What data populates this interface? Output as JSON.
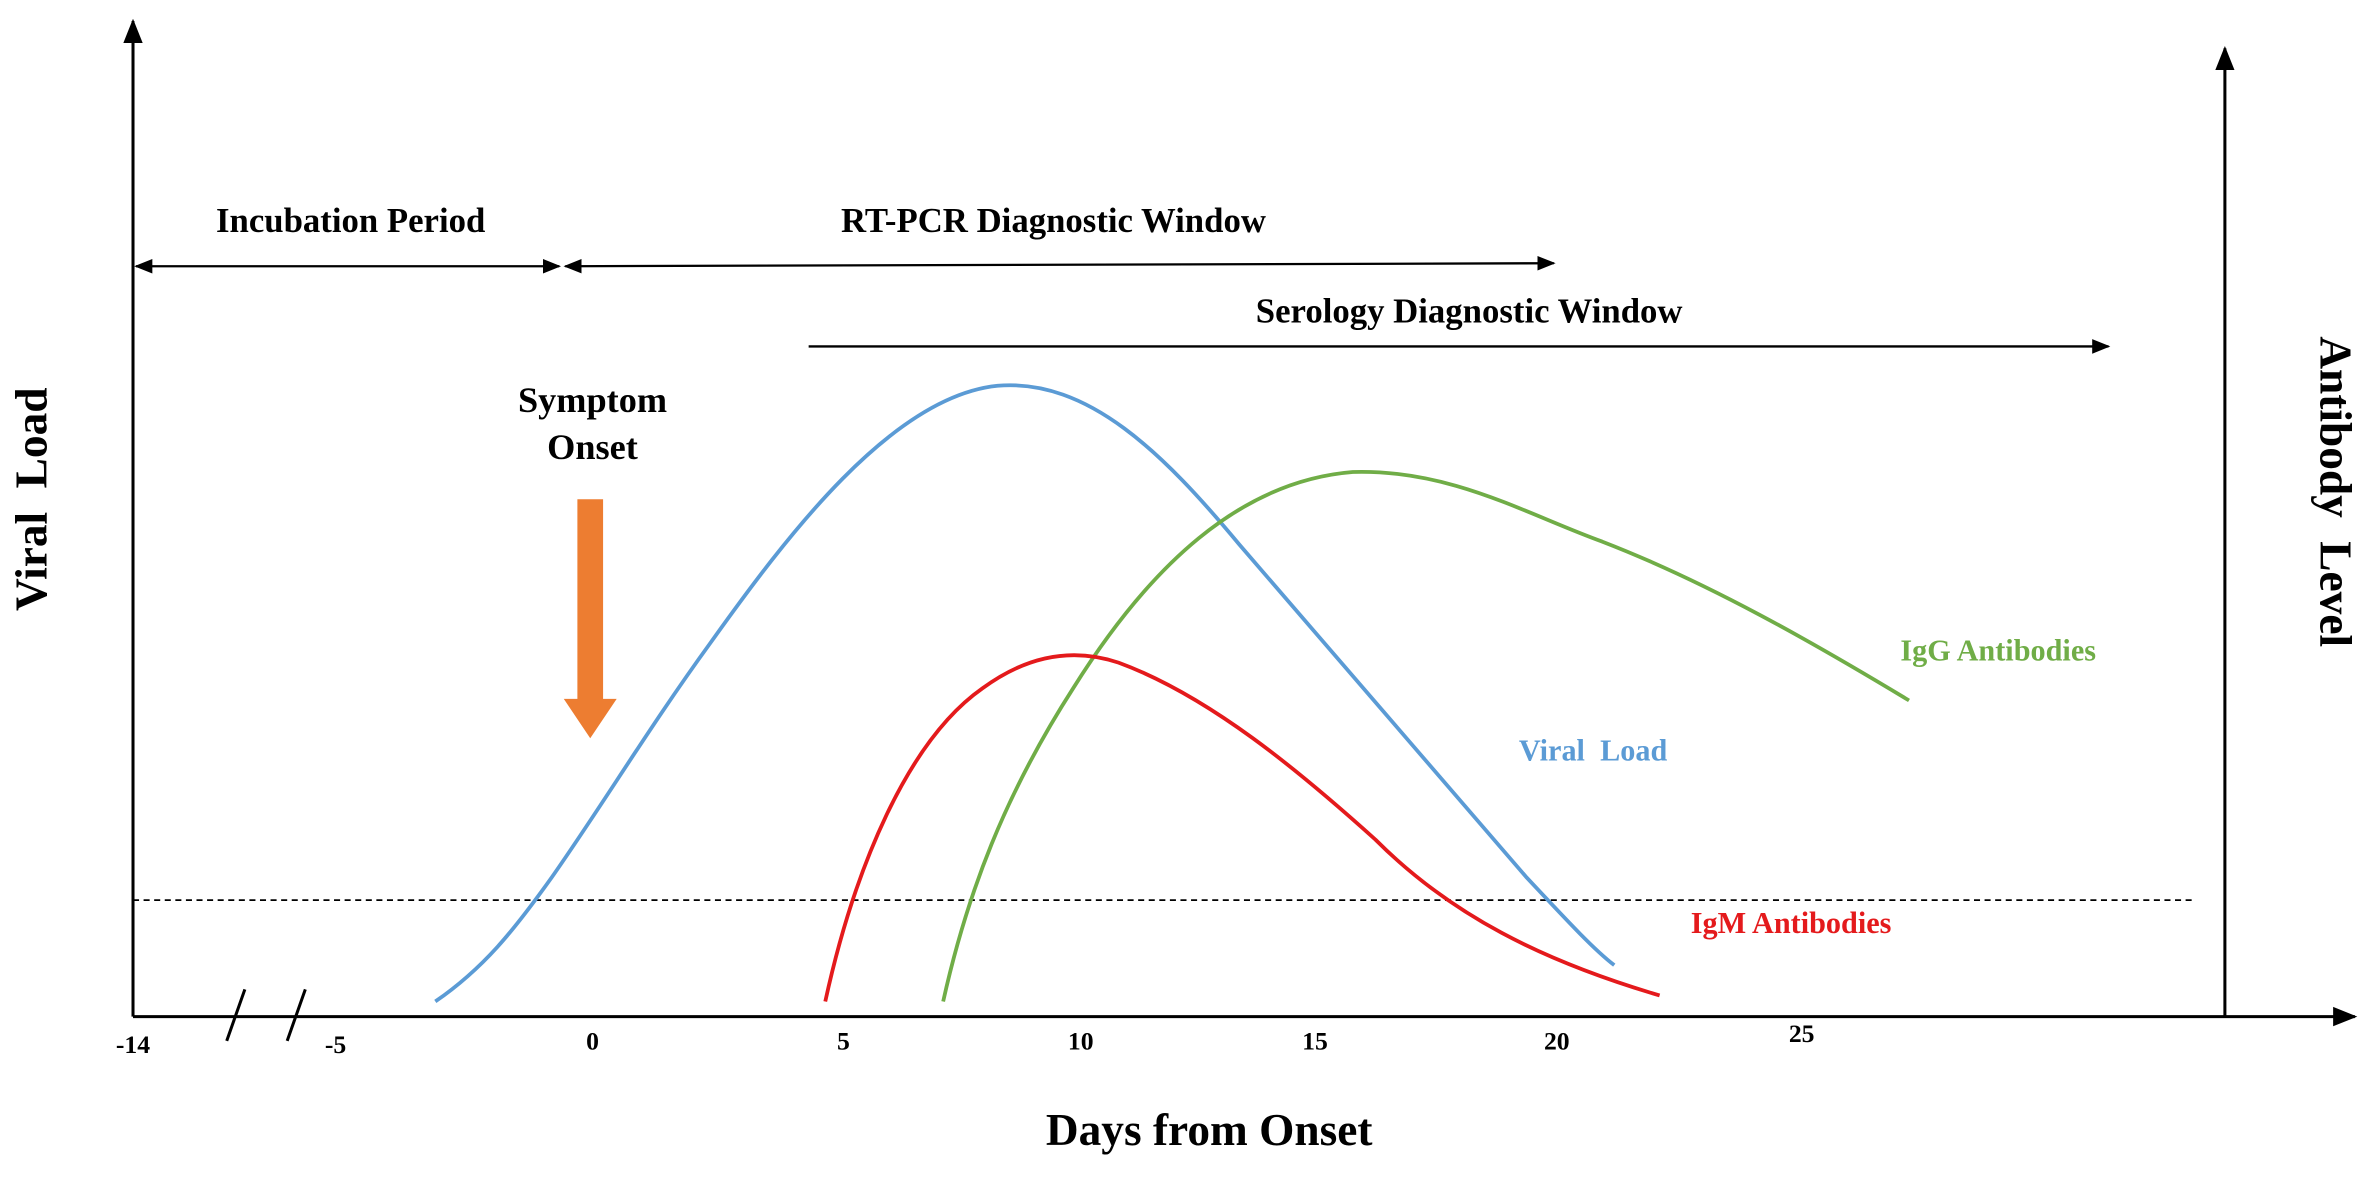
{
  "axes": {
    "x_label": "Days from Onset",
    "y_label": "Viral Load",
    "y2_label": "Antibody Level",
    "x_ticks": [
      "-14",
      "-5",
      "0",
      "5",
      "10",
      "15",
      "20",
      "25"
    ]
  },
  "windows": {
    "incubation": "Incubation Period",
    "rt_pcr": "RT-PCR Diagnostic Window",
    "serology": "Serology Diagnostic Window"
  },
  "symptom_onset": [
    "Symptom",
    "Onset"
  ],
  "curves": {
    "igg": "IgG Antibodies",
    "viral_load": "Viral Load",
    "igm": "IgM Antibodies"
  }
}
